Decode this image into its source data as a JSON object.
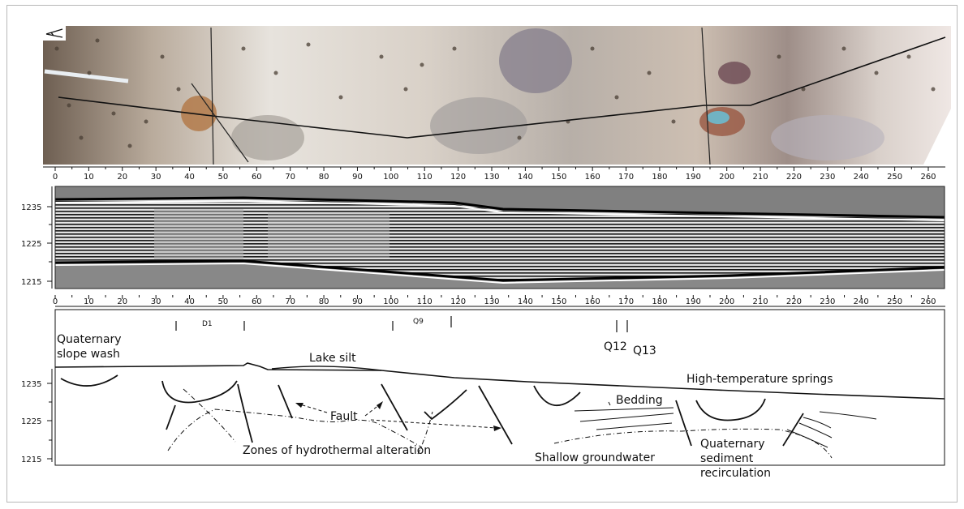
{
  "x_axis_ticks": [
    "0",
    "10",
    "20",
    "30",
    "40",
    "50",
    "60",
    "70",
    "80",
    "90",
    "100",
    "110",
    "120",
    "130",
    "140",
    "150",
    "160",
    "170",
    "180",
    "190",
    "200",
    "210",
    "220",
    "230",
    "240",
    "250",
    "260"
  ],
  "depth_ticks": [
    "1235",
    "1225",
    "1215"
  ],
  "markers": {
    "d1": "D1",
    "q9": "Q9",
    "q12": "Q12",
    "q13": "Q13"
  },
  "labels": {
    "quaternary_slope_wash_1": "Quaternary",
    "quaternary_slope_wash_2": "slope wash",
    "lake_silt": "Lake silt",
    "high_temp_springs": "High-temperature springs",
    "bedding": "Bedding",
    "fault": "Fault",
    "hydrothermal": "Zones of hydrothermal alteration",
    "shallow_groundwater": "Shallow groundwater",
    "quaternary_sediment_1": "Quaternary",
    "quaternary_sediment_2": "sediment",
    "quaternary_sediment_3": "recirculation"
  },
  "colors": {
    "aerial_base": "#cfc7bd",
    "gpr_gray": "#7f7f7f",
    "line": "#111111"
  }
}
